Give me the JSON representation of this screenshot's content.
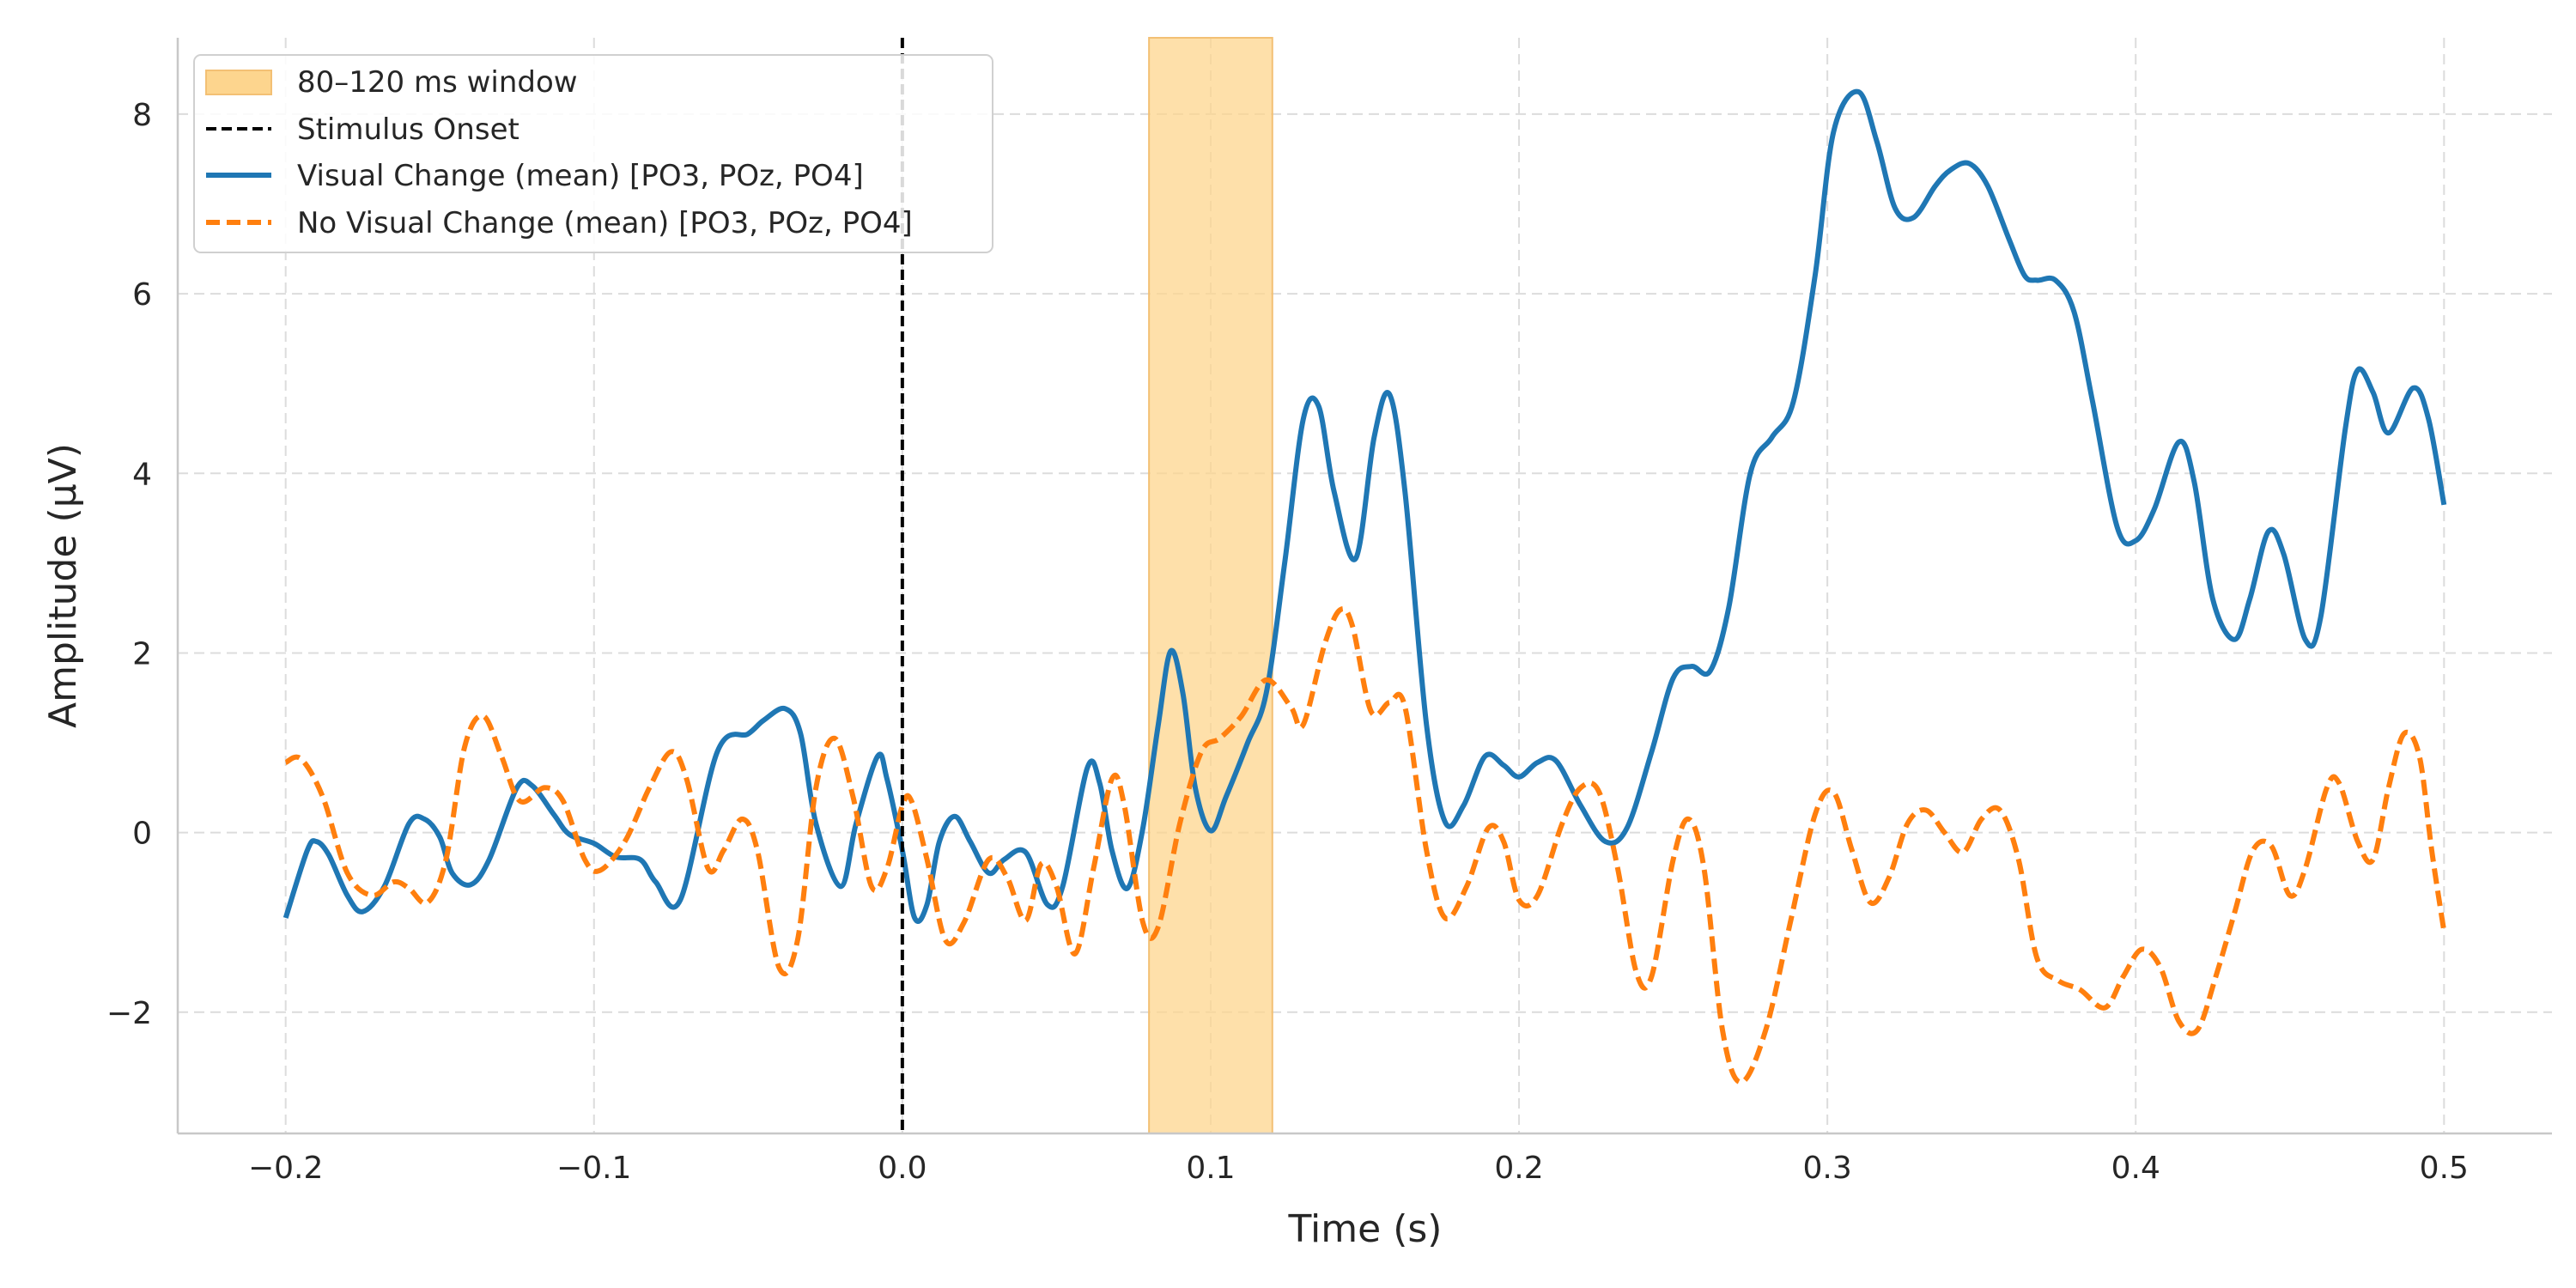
{
  "chart_data": {
    "type": "line",
    "title": "",
    "xlabel": "Time (s)",
    "ylabel": "Amplitude (μV)",
    "xlim": [
      -0.235,
      0.535
    ],
    "ylim": [
      -3.35,
      8.85
    ],
    "xticks": [
      -0.2,
      -0.1,
      0.0,
      0.1,
      0.2,
      0.3,
      0.4,
      0.5
    ],
    "xtick_labels": [
      "−0.2",
      "−0.1",
      "0.0",
      "0.1",
      "0.2",
      "0.3",
      "0.4",
      "0.5"
    ],
    "yticks": [
      -2,
      0,
      2,
      4,
      6,
      8
    ],
    "ytick_labels": [
      "−2",
      "0",
      "2",
      "4",
      "6",
      "8"
    ],
    "grid": true,
    "legend_position": "top-left",
    "window": {
      "label": "80–120 ms window",
      "start": 0.08,
      "end": 0.12,
      "color": "#fdd58e"
    },
    "onset": {
      "label": "Stimulus Onset",
      "x": 0.0,
      "color": "#000000"
    },
    "series": [
      {
        "name": "Visual Change (mean) [PO3, POz, PO4]",
        "color": "#1f77b4",
        "style": "solid",
        "points": [
          [
            -0.2,
            -0.95
          ],
          [
            -0.193,
            -0.2
          ],
          [
            -0.19,
            -0.1
          ],
          [
            -0.186,
            -0.25
          ],
          [
            -0.18,
            -0.7
          ],
          [
            -0.175,
            -0.88
          ],
          [
            -0.168,
            -0.6
          ],
          [
            -0.16,
            0.1
          ],
          [
            -0.155,
            0.15
          ],
          [
            -0.15,
            -0.05
          ],
          [
            -0.146,
            -0.45
          ],
          [
            -0.14,
            -0.58
          ],
          [
            -0.134,
            -0.3
          ],
          [
            -0.125,
            0.5
          ],
          [
            -0.12,
            0.52
          ],
          [
            -0.113,
            0.2
          ],
          [
            -0.108,
            -0.02
          ],
          [
            -0.1,
            -0.12
          ],
          [
            -0.093,
            -0.27
          ],
          [
            -0.085,
            -0.3
          ],
          [
            -0.08,
            -0.55
          ],
          [
            -0.072,
            -0.75
          ],
          [
            -0.06,
            0.9
          ],
          [
            -0.05,
            1.1
          ],
          [
            -0.045,
            1.25
          ],
          [
            -0.038,
            1.38
          ],
          [
            -0.033,
            1.1
          ],
          [
            -0.028,
            0.1
          ],
          [
            -0.02,
            -0.6
          ],
          [
            -0.015,
            0.1
          ],
          [
            -0.008,
            0.85
          ],
          [
            -0.005,
            0.6
          ],
          [
            0.0,
            -0.2
          ],
          [
            0.004,
            -0.95
          ],
          [
            0.008,
            -0.8
          ],
          [
            0.012,
            -0.1
          ],
          [
            0.017,
            0.18
          ],
          [
            0.022,
            -0.1
          ],
          [
            0.028,
            -0.45
          ],
          [
            0.033,
            -0.3
          ],
          [
            0.04,
            -0.22
          ],
          [
            0.047,
            -0.8
          ],
          [
            0.052,
            -0.6
          ],
          [
            0.06,
            0.72
          ],
          [
            0.064,
            0.55
          ],
          [
            0.068,
            -0.2
          ],
          [
            0.073,
            -0.62
          ],
          [
            0.078,
            0.05
          ],
          [
            0.083,
            1.2
          ],
          [
            0.087,
            2.02
          ],
          [
            0.091,
            1.55
          ],
          [
            0.095,
            0.5
          ],
          [
            0.1,
            0.02
          ],
          [
            0.105,
            0.4
          ],
          [
            0.112,
            1.0
          ],
          [
            0.118,
            1.55
          ],
          [
            0.124,
            3.0
          ],
          [
            0.13,
            4.6
          ],
          [
            0.135,
            4.75
          ],
          [
            0.14,
            3.8
          ],
          [
            0.147,
            3.05
          ],
          [
            0.153,
            4.4
          ],
          [
            0.158,
            4.88
          ],
          [
            0.163,
            3.8
          ],
          [
            0.17,
            1.2
          ],
          [
            0.176,
            0.12
          ],
          [
            0.182,
            0.3
          ],
          [
            0.189,
            0.85
          ],
          [
            0.195,
            0.75
          ],
          [
            0.2,
            0.62
          ],
          [
            0.206,
            0.78
          ],
          [
            0.212,
            0.8
          ],
          [
            0.22,
            0.3
          ],
          [
            0.228,
            -0.1
          ],
          [
            0.235,
            0.05
          ],
          [
            0.243,
            0.9
          ],
          [
            0.25,
            1.72
          ],
          [
            0.256,
            1.85
          ],
          [
            0.262,
            1.8
          ],
          [
            0.268,
            2.5
          ],
          [
            0.275,
            4.0
          ],
          [
            0.282,
            4.4
          ],
          [
            0.289,
            4.8
          ],
          [
            0.296,
            6.2
          ],
          [
            0.302,
            7.8
          ],
          [
            0.31,
            8.25
          ],
          [
            0.316,
            7.7
          ],
          [
            0.322,
            6.95
          ],
          [
            0.328,
            6.85
          ],
          [
            0.335,
            7.2
          ],
          [
            0.34,
            7.38
          ],
          [
            0.346,
            7.45
          ],
          [
            0.352,
            7.2
          ],
          [
            0.359,
            6.6
          ],
          [
            0.364,
            6.2
          ],
          [
            0.368,
            6.15
          ],
          [
            0.374,
            6.15
          ],
          [
            0.38,
            5.8
          ],
          [
            0.386,
            4.8
          ],
          [
            0.394,
            3.4
          ],
          [
            0.4,
            3.25
          ],
          [
            0.406,
            3.6
          ],
          [
            0.414,
            4.35
          ],
          [
            0.419,
            3.9
          ],
          [
            0.425,
            2.6
          ],
          [
            0.432,
            2.15
          ],
          [
            0.437,
            2.6
          ],
          [
            0.443,
            3.35
          ],
          [
            0.448,
            3.1
          ],
          [
            0.455,
            2.15
          ],
          [
            0.46,
            2.4
          ],
          [
            0.468,
            4.5
          ],
          [
            0.472,
            5.15
          ],
          [
            0.477,
            4.9
          ],
          [
            0.482,
            4.45
          ],
          [
            0.49,
            4.95
          ],
          [
            0.495,
            4.6
          ],
          [
            0.5,
            3.65
          ]
        ]
      },
      {
        "name": "No Visual Change (mean) [PO3, POz, PO4]",
        "color": "#ff7f0e",
        "style": "dashed",
        "points": [
          [
            -0.2,
            0.78
          ],
          [
            -0.195,
            0.82
          ],
          [
            -0.188,
            0.4
          ],
          [
            -0.18,
            -0.45
          ],
          [
            -0.172,
            -0.7
          ],
          [
            -0.165,
            -0.55
          ],
          [
            -0.16,
            -0.62
          ],
          [
            -0.154,
            -0.78
          ],
          [
            -0.148,
            -0.3
          ],
          [
            -0.142,
            0.95
          ],
          [
            -0.136,
            1.3
          ],
          [
            -0.13,
            0.85
          ],
          [
            -0.124,
            0.35
          ],
          [
            -0.116,
            0.5
          ],
          [
            -0.11,
            0.35
          ],
          [
            -0.103,
            -0.3
          ],
          [
            -0.098,
            -0.42
          ],
          [
            -0.09,
            -0.1
          ],
          [
            -0.082,
            0.5
          ],
          [
            -0.075,
            0.9
          ],
          [
            -0.07,
            0.6
          ],
          [
            -0.063,
            -0.4
          ],
          [
            -0.058,
            -0.2
          ],
          [
            -0.052,
            0.15
          ],
          [
            -0.047,
            -0.2
          ],
          [
            -0.04,
            -1.5
          ],
          [
            -0.034,
            -1.2
          ],
          [
            -0.028,
            0.5
          ],
          [
            -0.022,
            1.05
          ],
          [
            -0.016,
            0.4
          ],
          [
            -0.01,
            -0.6
          ],
          [
            -0.005,
            -0.4
          ],
          [
            0.0,
            0.3
          ],
          [
            0.003,
            0.35
          ],
          [
            0.008,
            -0.3
          ],
          [
            0.014,
            -1.2
          ],
          [
            0.02,
            -1.0
          ],
          [
            0.028,
            -0.3
          ],
          [
            0.034,
            -0.5
          ],
          [
            0.04,
            -0.98
          ],
          [
            0.045,
            -0.35
          ],
          [
            0.05,
            -0.6
          ],
          [
            0.056,
            -1.35
          ],
          [
            0.062,
            -0.4
          ],
          [
            0.068,
            0.6
          ],
          [
            0.072,
            0.3
          ],
          [
            0.078,
            -1.0
          ],
          [
            0.083,
            -1.05
          ],
          [
            0.09,
            0.1
          ],
          [
            0.097,
            0.9
          ],
          [
            0.103,
            1.05
          ],
          [
            0.11,
            1.3
          ],
          [
            0.118,
            1.7
          ],
          [
            0.126,
            1.4
          ],
          [
            0.13,
            1.2
          ],
          [
            0.137,
            2.1
          ],
          [
            0.142,
            2.48
          ],
          [
            0.146,
            2.3
          ],
          [
            0.152,
            1.35
          ],
          [
            0.158,
            1.45
          ],
          [
            0.163,
            1.4
          ],
          [
            0.17,
            -0.2
          ],
          [
            0.176,
            -0.95
          ],
          [
            0.183,
            -0.6
          ],
          [
            0.19,
            0.05
          ],
          [
            0.195,
            -0.1
          ],
          [
            0.2,
            -0.75
          ],
          [
            0.206,
            -0.7
          ],
          [
            0.214,
            0.1
          ],
          [
            0.22,
            0.5
          ],
          [
            0.226,
            0.45
          ],
          [
            0.232,
            -0.4
          ],
          [
            0.238,
            -1.55
          ],
          [
            0.243,
            -1.6
          ],
          [
            0.25,
            -0.3
          ],
          [
            0.255,
            0.15
          ],
          [
            0.26,
            -0.4
          ],
          [
            0.266,
            -2.2
          ],
          [
            0.272,
            -2.78
          ],
          [
            0.28,
            -2.2
          ],
          [
            0.288,
            -1.0
          ],
          [
            0.296,
            0.2
          ],
          [
            0.302,
            0.45
          ],
          [
            0.308,
            -0.2
          ],
          [
            0.314,
            -0.78
          ],
          [
            0.32,
            -0.5
          ],
          [
            0.326,
            0.1
          ],
          [
            0.332,
            0.25
          ],
          [
            0.338,
            0.0
          ],
          [
            0.344,
            -0.22
          ],
          [
            0.35,
            0.15
          ],
          [
            0.356,
            0.25
          ],
          [
            0.362,
            -0.3
          ],
          [
            0.368,
            -1.4
          ],
          [
            0.375,
            -1.65
          ],
          [
            0.382,
            -1.75
          ],
          [
            0.39,
            -1.95
          ],
          [
            0.396,
            -1.6
          ],
          [
            0.402,
            -1.3
          ],
          [
            0.408,
            -1.5
          ],
          [
            0.414,
            -2.1
          ],
          [
            0.42,
            -2.2
          ],
          [
            0.426,
            -1.6
          ],
          [
            0.432,
            -0.9
          ],
          [
            0.438,
            -0.2
          ],
          [
            0.444,
            -0.15
          ],
          [
            0.45,
            -0.7
          ],
          [
            0.455,
            -0.4
          ],
          [
            0.462,
            0.5
          ],
          [
            0.466,
            0.55
          ],
          [
            0.472,
            -0.1
          ],
          [
            0.477,
            -0.3
          ],
          [
            0.482,
            0.5
          ],
          [
            0.487,
            1.1
          ],
          [
            0.492,
            0.85
          ],
          [
            0.496,
            -0.2
          ],
          [
            0.5,
            -1.1
          ]
        ]
      }
    ]
  }
}
